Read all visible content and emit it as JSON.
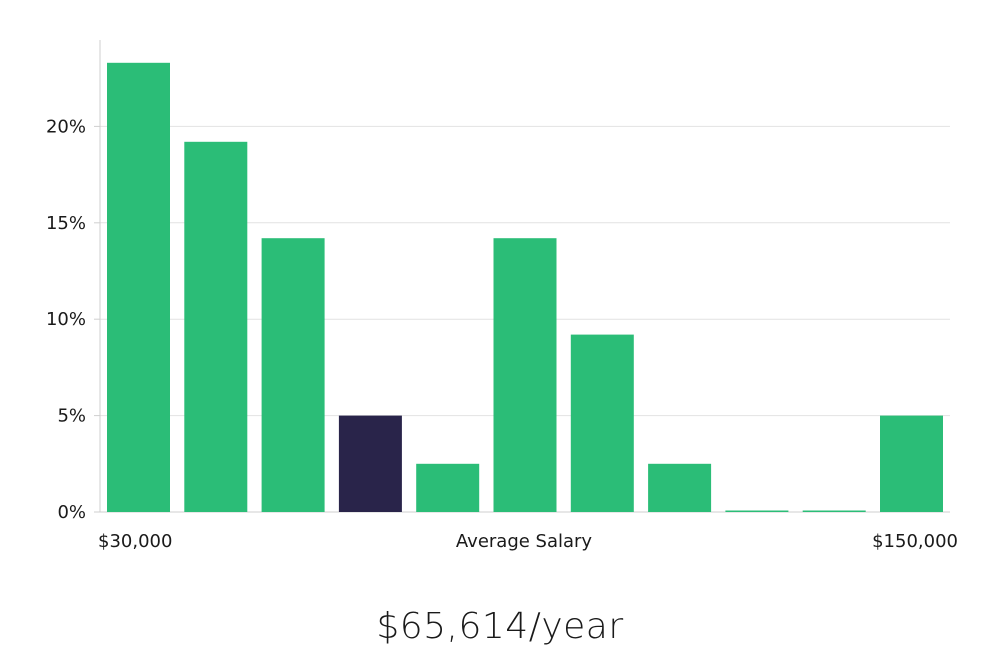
{
  "chart_data": {
    "type": "bar",
    "categories": [
      "1",
      "2",
      "3",
      "4",
      "5",
      "6",
      "7",
      "8",
      "9",
      "10",
      "11"
    ],
    "values": [
      23.3,
      19.2,
      14.2,
      5.0,
      2.5,
      14.2,
      9.2,
      2.5,
      0,
      0,
      5.0
    ],
    "highlight_index": 3,
    "ylim": [
      0,
      25
    ],
    "yticks": [
      0,
      5,
      10,
      15,
      20
    ],
    "ytick_format": "percent",
    "grid": "horizontal",
    "x_min_label": "$30,000",
    "x_max_label": "$150,000",
    "xlabel": "Average Salary"
  },
  "colors": {
    "bar": "#2bbd77",
    "highlight": "#29244a",
    "grid": "#e2e2e2",
    "axis": "#cfcfcf"
  },
  "salary_text": "$65,614/year"
}
